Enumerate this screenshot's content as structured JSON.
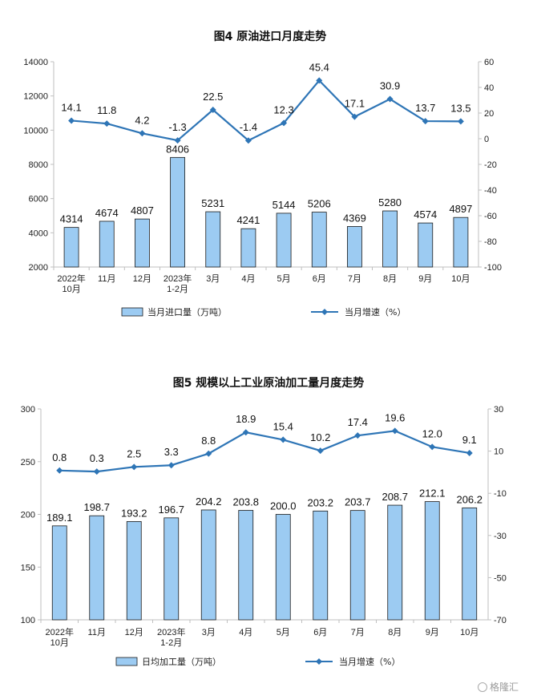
{
  "watermark": "格隆汇",
  "chart_data": [
    {
      "type": "bar",
      "title": "图4  原油进口月度走势",
      "categories": [
        "2022年|10月",
        "11月",
        "12月",
        "2023年|1-2月",
        "3月",
        "4月",
        "5月",
        "6月",
        "7月",
        "8月",
        "9月",
        "10月"
      ],
      "ylim_left": [
        2000,
        14000
      ],
      "ylim_right": [
        -100,
        60
      ],
      "left_ticks": [
        2000,
        4000,
        6000,
        8000,
        10000,
        12000,
        14000
      ],
      "right_ticks": [
        -100,
        -80,
        -60,
        -40,
        -20,
        0,
        20,
        40,
        60
      ],
      "series": [
        {
          "name": "当月进口量（万吨）",
          "kind": "bar",
          "axis": "left",
          "color": "#9ccbf2",
          "values": [
            4314,
            4674,
            4807,
            8406,
            5231,
            4241,
            5144,
            5206,
            4369,
            5280,
            4574,
            4897
          ],
          "labels": [
            "4314",
            "4674",
            "4807",
            "8406",
            "5231",
            "4241",
            "5144",
            "5206",
            "4369",
            "5280",
            "4574",
            "4897"
          ]
        },
        {
          "name": "当月增速（%）",
          "kind": "line",
          "axis": "right",
          "color": "#2e75b6",
          "values": [
            14.1,
            11.8,
            4.2,
            -1.3,
            22.5,
            -1.4,
            12.3,
            45.4,
            17.1,
            30.9,
            13.7,
            13.5
          ],
          "labels": [
            "14.1",
            "11.8",
            "4.2",
            "-1.3",
            "22.5",
            "-1.4",
            "12.3",
            "45.4",
            "17.1",
            "30.9",
            "13.7",
            "13.5"
          ]
        }
      ]
    },
    {
      "type": "bar",
      "title": "图5  规模以上工业原油加工量月度走势",
      "categories": [
        "2022年|10月",
        "11月",
        "12月",
        "2023年|1-2月",
        "3月",
        "4月",
        "5月",
        "6月",
        "7月",
        "8月",
        "9月",
        "10月"
      ],
      "ylim_left": [
        100,
        300
      ],
      "ylim_right": [
        -70,
        30
      ],
      "left_ticks": [
        100,
        150,
        200,
        250,
        300
      ],
      "right_ticks": [
        -70,
        -50,
        -30,
        -10,
        10,
        30
      ],
      "series": [
        {
          "name": "日均加工量（万吨）",
          "kind": "bar",
          "axis": "left",
          "color": "#9ccbf2",
          "values": [
            189.1,
            198.7,
            193.2,
            196.7,
            204.2,
            203.8,
            200.0,
            203.2,
            203.7,
            208.7,
            212.1,
            206.2
          ],
          "labels": [
            "189.1",
            "198.7",
            "193.2",
            "196.7",
            "204.2",
            "203.8",
            "200.0",
            "203.2",
            "203.7",
            "208.7",
            "212.1",
            "206.2"
          ]
        },
        {
          "name": "当月增速（%）",
          "kind": "line",
          "axis": "right",
          "color": "#2e75b6",
          "values": [
            0.8,
            0.3,
            2.5,
            3.3,
            8.8,
            18.9,
            15.4,
            10.2,
            17.4,
            19.6,
            12.0,
            9.1
          ],
          "labels": [
            "0.8",
            "0.3",
            "2.5",
            "3.3",
            "8.8",
            "18.9",
            "15.4",
            "10.2",
            "17.4",
            "19.6",
            "12.0",
            "9.1"
          ]
        }
      ]
    }
  ]
}
